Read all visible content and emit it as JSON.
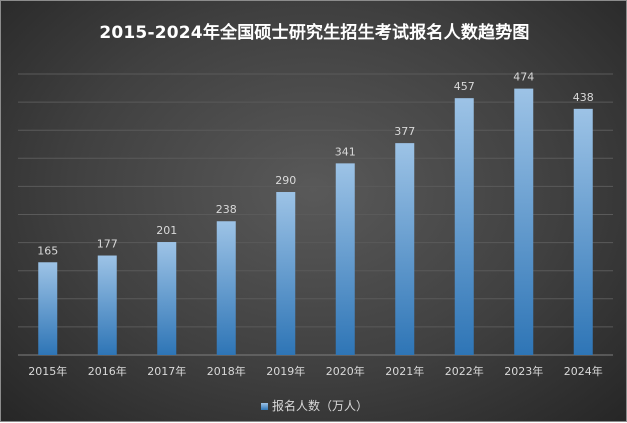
{
  "chart_data": {
    "type": "bar",
    "title": "2015-2024年全国硕士研究生招生考试报名人数趋势图",
    "categories": [
      "2015年",
      "2016年",
      "2017年",
      "2018年",
      "2019年",
      "2020年",
      "2021年",
      "2022年",
      "2023年",
      "2024年"
    ],
    "series": [
      {
        "name": "报名人数（万人）",
        "values": [
          165,
          177,
          201,
          238,
          290,
          341,
          377,
          457,
          474,
          438
        ]
      }
    ],
    "ylim": [
      0,
      500
    ],
    "grid": true,
    "legend_position": "bottom",
    "data_labels": true,
    "colors": {
      "bar_top": "#9dc3e6",
      "bar_bottom": "#2e75b6",
      "background": "#404040",
      "grid": "#5a5a5a",
      "text": "#d9d9d9"
    }
  }
}
